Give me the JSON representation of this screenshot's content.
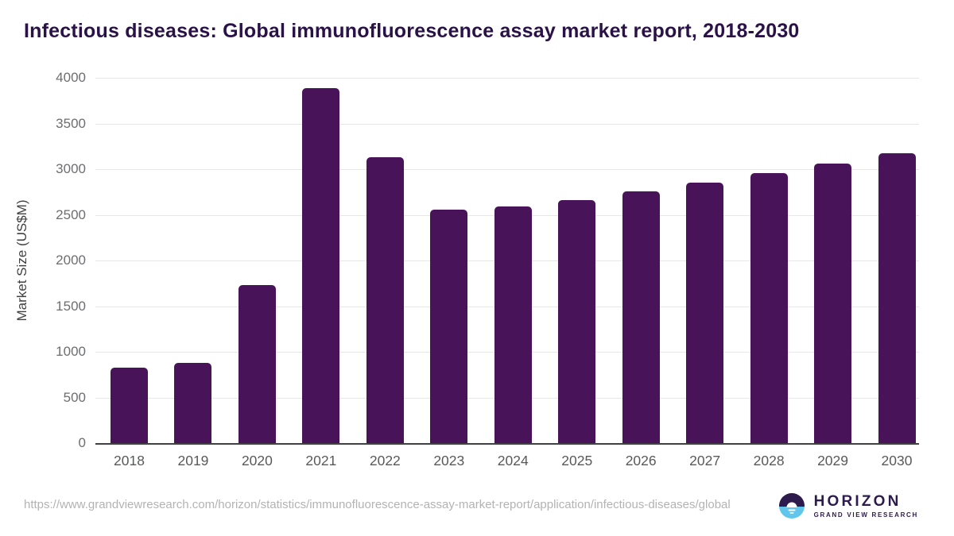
{
  "header": {
    "title": "Infectious diseases: Global immunofluorescence assay market report, 2018-2030"
  },
  "chart_data": {
    "type": "bar",
    "title": "Infectious diseases: Global immunofluorescence assay market report, 2018-2030",
    "categories": [
      "2018",
      "2019",
      "2020",
      "2021",
      "2022",
      "2023",
      "2024",
      "2025",
      "2026",
      "2027",
      "2028",
      "2029",
      "2030"
    ],
    "values": [
      830,
      875,
      1730,
      3890,
      3130,
      2560,
      2595,
      2665,
      2760,
      2850,
      2955,
      3060,
      3170
    ],
    "xlabel": "",
    "ylabel": "Market Size (US$M)",
    "ylim": [
      0,
      4000
    ],
    "yticks": [
      0,
      500,
      1000,
      1500,
      2000,
      2500,
      3000,
      3500,
      4000
    ],
    "grid": "horizontal",
    "legend": "none",
    "bar_color": "#481358"
  },
  "footer": {
    "source_url": "https://www.grandviewresearch.com/horizon/statistics/immunofluorescence-assay-market-report/application/infectious-diseases/global",
    "logo": {
      "name": "HORIZON",
      "tagline": "GRAND VIEW RESEARCH"
    }
  },
  "colors": {
    "bar": "#481358",
    "title_text": "#2a1148",
    "logo_purple": "#2d1b4e",
    "logo_blue": "#62c6ec",
    "x_tick_text": "#58595b",
    "y_tick_text": "#6d6e71",
    "grid_line": "#e7e7e7",
    "axis_line": "#414042",
    "url_text": "#b3b3b3"
  }
}
